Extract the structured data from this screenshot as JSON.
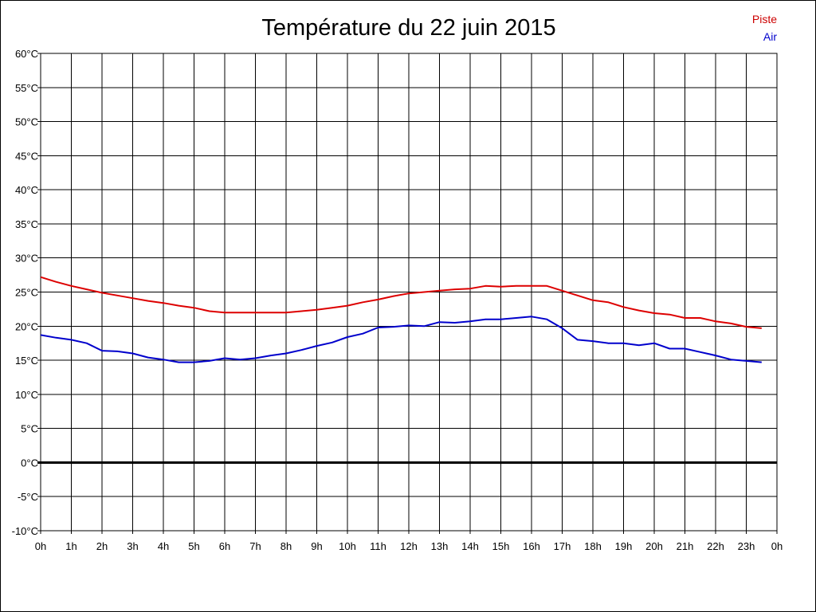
{
  "chart_data": {
    "type": "line",
    "title": "Température du 22 juin 2015",
    "xlabel": "",
    "ylabel": "",
    "xlim": [
      0,
      24
    ],
    "ylim": [
      -10,
      60
    ],
    "grid": true,
    "legend_position": "top-right",
    "x_ticks": [
      "0h",
      "1h",
      "2h",
      "3h",
      "4h",
      "5h",
      "6h",
      "7h",
      "8h",
      "9h",
      "10h",
      "11h",
      "12h",
      "13h",
      "14h",
      "15h",
      "16h",
      "17h",
      "18h",
      "19h",
      "20h",
      "21h",
      "22h",
      "23h",
      "0h"
    ],
    "y_ticks": [
      "-10°C",
      "-5°C",
      "0°C",
      "5°C",
      "10°C",
      "15°C",
      "20°C",
      "25°C",
      "30°C",
      "35°C",
      "40°C",
      "45°C",
      "50°C",
      "55°C",
      "60°C"
    ],
    "x": [
      0,
      0.5,
      1,
      1.5,
      2,
      2.5,
      3,
      3.5,
      4,
      4.5,
      5,
      5.5,
      6,
      6.5,
      7,
      7.5,
      8,
      8.5,
      9,
      9.5,
      10,
      10.5,
      11,
      11.5,
      12,
      12.5,
      13,
      13.5,
      14,
      14.5,
      15,
      15.5,
      16,
      16.5,
      17,
      17.5,
      18,
      18.5,
      19,
      19.5,
      20,
      20.5,
      21,
      21.5,
      22,
      22.5,
      23,
      23.5
    ],
    "series": [
      {
        "name": "Piste",
        "color": "#dd0000",
        "values": [
          27.2,
          26.5,
          25.9,
          25.4,
          24.9,
          24.5,
          24.1,
          23.7,
          23.4,
          23.0,
          22.7,
          22.2,
          22.0,
          22.0,
          22.0,
          22.0,
          22.0,
          22.2,
          22.4,
          22.7,
          23.0,
          23.5,
          23.9,
          24.4,
          24.8,
          25.0,
          25.2,
          25.4,
          25.5,
          25.9,
          25.8,
          25.9,
          25.9,
          25.9,
          25.2,
          24.5,
          23.8,
          23.5,
          22.8,
          22.3,
          21.9,
          21.7,
          21.2,
          21.2,
          20.7,
          20.4,
          19.9,
          19.7
        ]
      },
      {
        "name": "Air",
        "color": "#0000cc",
        "values": [
          18.7,
          18.3,
          18.0,
          17.5,
          16.4,
          16.3,
          16.0,
          15.4,
          15.1,
          14.7,
          14.7,
          14.9,
          15.3,
          15.1,
          15.3,
          15.7,
          16.0,
          16.5,
          17.1,
          17.6,
          18.4,
          18.9,
          19.8,
          19.9,
          20.1,
          20.0,
          20.6,
          20.5,
          20.7,
          21.0,
          21.0,
          21.2,
          21.4,
          21.0,
          19.7,
          18.0,
          17.8,
          17.5,
          17.5,
          17.2,
          17.5,
          16.7,
          16.7,
          16.2,
          15.7,
          15.1,
          14.9,
          14.7
        ]
      }
    ]
  }
}
